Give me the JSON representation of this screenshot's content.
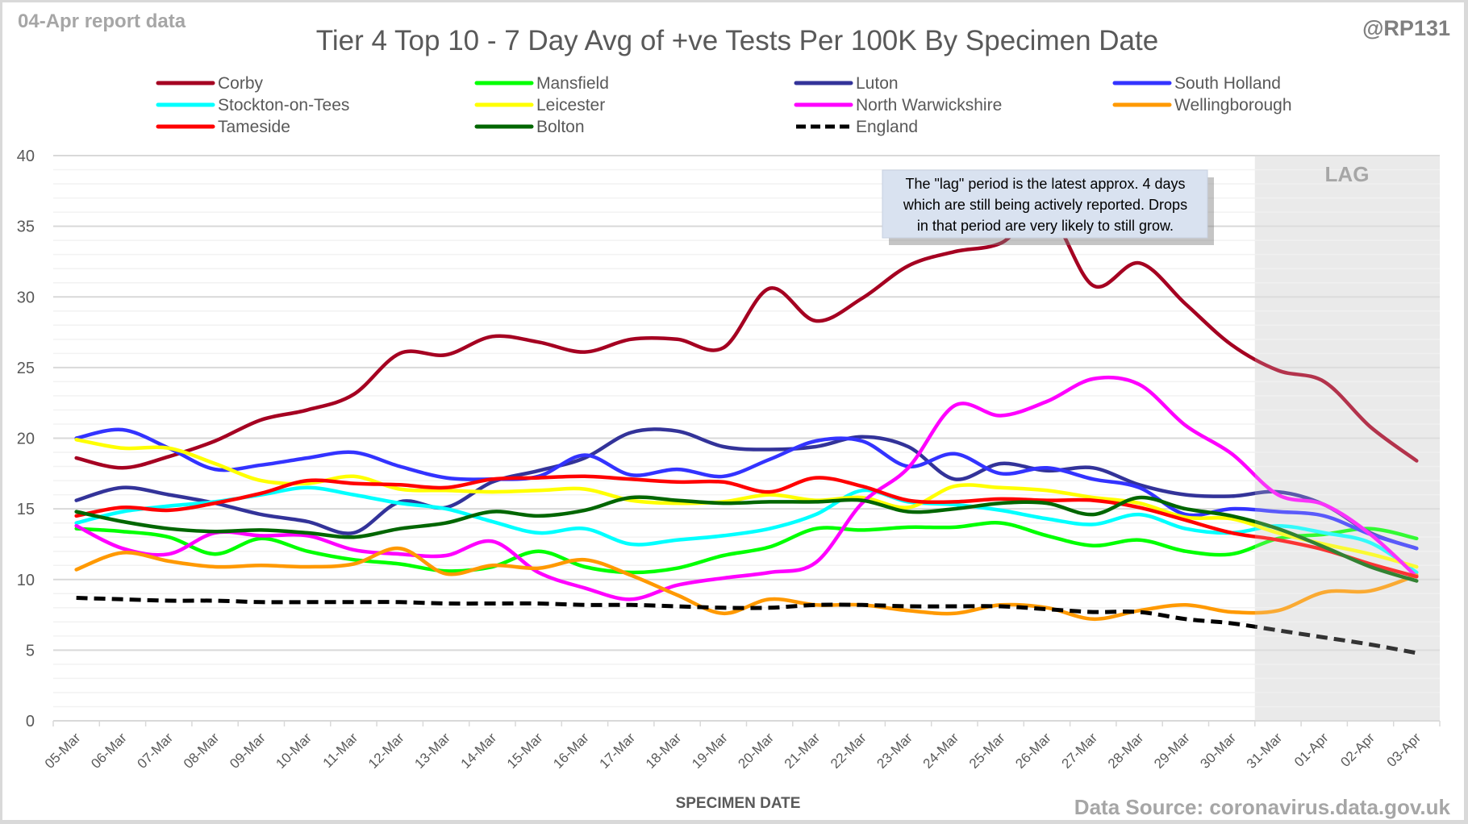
{
  "header": {
    "report_label": "04-Apr report data",
    "handle": "@RP131",
    "source": "Data Source: coronavirus.data.gov.uk"
  },
  "annotation": {
    "lines": [
      "The \"lag\" period is the latest approx. 4 days",
      "which are still being actively reported.  Drops",
      "in that period are very likely to still grow."
    ],
    "lag_label": "LAG",
    "lag_start": "31-Mar"
  },
  "chart_data": {
    "type": "line",
    "title": "Tier 4 Top 10 - 7 Day Avg of +ve Tests Per 100K By Specimen Date",
    "xlabel": "SPECIMEN DATE",
    "ylabel": "",
    "ylim": [
      0,
      40
    ],
    "yticks": [
      0,
      5,
      10,
      15,
      20,
      25,
      30,
      35,
      40
    ],
    "grid": true,
    "legend_position": "top",
    "x": [
      "05-Mar",
      "06-Mar",
      "07-Mar",
      "08-Mar",
      "09-Mar",
      "10-Mar",
      "11-Mar",
      "12-Mar",
      "13-Mar",
      "14-Mar",
      "15-Mar",
      "16-Mar",
      "17-Mar",
      "18-Mar",
      "19-Mar",
      "20-Mar",
      "21-Mar",
      "22-Mar",
      "23-Mar",
      "24-Mar",
      "25-Mar",
      "26-Mar",
      "27-Mar",
      "28-Mar",
      "29-Mar",
      "30-Mar",
      "31-Mar",
      "01-Apr",
      "02-Apr",
      "03-Apr"
    ],
    "series": [
      {
        "name": "Corby",
        "color": "#a50021",
        "dash": false,
        "values": [
          18.6,
          17.9,
          18.7,
          19.8,
          21.3,
          22.0,
          23.1,
          26.0,
          25.9,
          27.2,
          26.8,
          26.1,
          27.0,
          27.0,
          26.4,
          30.6,
          28.3,
          29.9,
          32.2,
          33.2,
          33.8,
          36.0,
          30.8,
          32.4,
          29.5,
          26.6,
          24.8,
          24.0,
          20.8,
          18.4
        ]
      },
      {
        "name": "Mansfield",
        "color": "#00ff00",
        "dash": false,
        "values": [
          13.6,
          13.4,
          13.0,
          11.8,
          12.9,
          12.0,
          11.4,
          11.1,
          10.6,
          10.9,
          12.0,
          10.9,
          10.5,
          10.8,
          11.7,
          12.3,
          13.6,
          13.5,
          13.7,
          13.7,
          14.0,
          13.1,
          12.4,
          12.8,
          12.0,
          11.8,
          12.9,
          13.2,
          13.6,
          12.9
        ]
      },
      {
        "name": "Luton",
        "color": "#333399",
        "dash": false,
        "values": [
          15.6,
          16.5,
          16.0,
          15.4,
          14.6,
          14.1,
          13.3,
          15.5,
          15.1,
          16.9,
          17.7,
          18.6,
          20.4,
          20.5,
          19.4,
          19.2,
          19.4,
          20.1,
          19.4,
          17.1,
          18.2,
          17.7,
          17.9,
          16.7,
          16.0,
          15.9,
          16.2,
          15.3,
          13.3,
          12.2
        ]
      },
      {
        "name": "South Holland",
        "color": "#3333ff",
        "dash": false,
        "values": [
          20.0,
          20.6,
          19.3,
          17.8,
          18.1,
          18.6,
          19.0,
          18.0,
          17.2,
          17.1,
          17.3,
          18.8,
          17.4,
          17.8,
          17.3,
          18.5,
          19.8,
          19.8,
          18.0,
          18.9,
          17.5,
          17.9,
          17.1,
          16.5,
          14.6,
          15.0,
          14.8,
          14.5,
          13.2,
          12.2
        ]
      },
      {
        "name": "Stockton-on-Tees",
        "color": "#00ffff",
        "dash": false,
        "values": [
          14.0,
          14.8,
          15.2,
          15.5,
          16.0,
          16.5,
          16.0,
          15.4,
          15.0,
          14.1,
          13.3,
          13.6,
          12.5,
          12.8,
          13.1,
          13.6,
          14.6,
          16.3,
          15.5,
          15.3,
          14.9,
          14.3,
          13.9,
          14.6,
          13.6,
          13.3,
          13.8,
          13.3,
          12.6,
          10.5
        ]
      },
      {
        "name": "Leicester",
        "color": "#ffff00",
        "dash": false,
        "values": [
          19.9,
          19.3,
          19.3,
          18.2,
          17.0,
          16.8,
          17.3,
          16.4,
          16.3,
          16.2,
          16.3,
          16.4,
          15.6,
          15.4,
          15.5,
          16.0,
          15.6,
          15.8,
          15.1,
          16.6,
          16.5,
          16.3,
          15.8,
          15.4,
          14.4,
          14.3,
          13.3,
          12.5,
          11.8,
          10.9
        ]
      },
      {
        "name": "North Warwickshire",
        "color": "#ff00ff",
        "dash": false,
        "values": [
          13.8,
          12.2,
          11.8,
          13.3,
          13.1,
          13.1,
          12.1,
          11.8,
          11.7,
          12.7,
          10.5,
          9.4,
          8.6,
          9.6,
          10.1,
          10.5,
          11.2,
          15.4,
          17.9,
          22.3,
          21.6,
          22.6,
          24.2,
          23.8,
          20.9,
          18.9,
          16.0,
          15.3,
          13.2,
          10.2
        ]
      },
      {
        "name": "Wellingborough",
        "color": "#ff9900",
        "dash": false,
        "values": [
          10.7,
          11.9,
          11.3,
          10.9,
          11.0,
          10.9,
          11.1,
          12.2,
          10.4,
          11.0,
          10.8,
          11.4,
          10.3,
          8.9,
          7.6,
          8.6,
          8.2,
          8.2,
          7.8,
          7.6,
          8.2,
          8.0,
          7.2,
          7.8,
          8.2,
          7.7,
          7.8,
          9.1,
          9.2,
          10.3
        ]
      },
      {
        "name": "Tameside",
        "color": "#ff0000",
        "dash": false,
        "values": [
          14.5,
          15.1,
          14.9,
          15.4,
          16.1,
          17.0,
          16.8,
          16.7,
          16.5,
          17.1,
          17.2,
          17.3,
          17.1,
          16.9,
          16.9,
          16.2,
          17.2,
          16.6,
          15.6,
          15.5,
          15.7,
          15.6,
          15.6,
          15.1,
          14.2,
          13.3,
          12.8,
          12.1,
          11.1,
          10.2
        ]
      },
      {
        "name": "Bolton",
        "color": "#006600",
        "dash": false,
        "values": [
          14.8,
          14.1,
          13.6,
          13.4,
          13.5,
          13.3,
          13.0,
          13.6,
          14.0,
          14.8,
          14.5,
          14.9,
          15.8,
          15.6,
          15.4,
          15.5,
          15.5,
          15.6,
          14.8,
          15.0,
          15.4,
          15.4,
          14.6,
          15.8,
          15.0,
          14.5,
          13.6,
          12.3,
          10.9,
          9.9
        ]
      },
      {
        "name": "England",
        "color": "#000000",
        "dash": true,
        "values": [
          8.7,
          8.6,
          8.5,
          8.5,
          8.4,
          8.4,
          8.4,
          8.4,
          8.3,
          8.3,
          8.3,
          8.2,
          8.2,
          8.1,
          8.0,
          8.0,
          8.2,
          8.2,
          8.1,
          8.1,
          8.1,
          7.9,
          7.7,
          7.7,
          7.2,
          6.9,
          6.4,
          5.9,
          5.4,
          4.8
        ]
      }
    ]
  }
}
